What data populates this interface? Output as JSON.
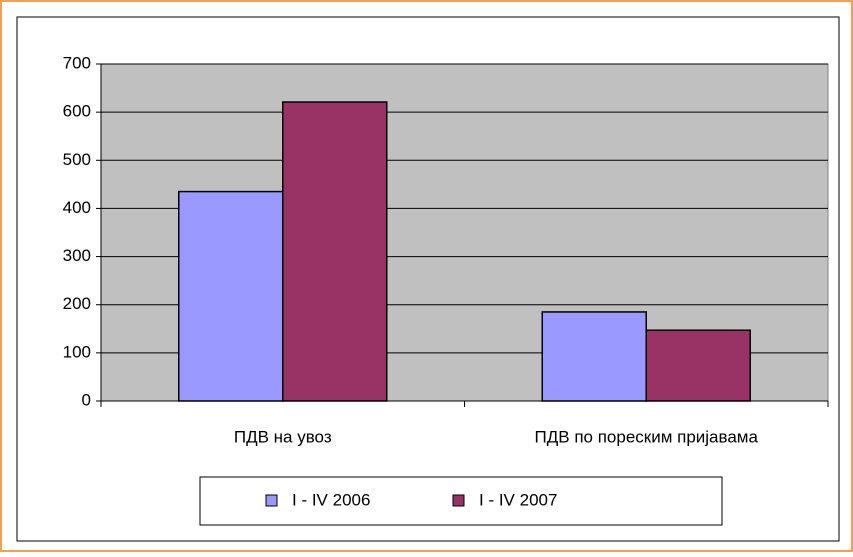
{
  "chart_data": {
    "type": "bar",
    "categories": [
      "ПДВ на увоз",
      "ПДВ по пореским пријавама"
    ],
    "series": [
      {
        "name": "I - IV 2006",
        "color": "#9999ff",
        "values": [
          435,
          185
        ]
      },
      {
        "name": "I - IV 2007",
        "color": "#993366",
        "values": [
          621,
          147
        ]
      }
    ],
    "ylim": [
      0,
      700
    ],
    "yticks": [
      0,
      100,
      200,
      300,
      400,
      500,
      600,
      700
    ],
    "grid": true,
    "plot_background": "#c0c0c0",
    "legend": "bottom"
  }
}
